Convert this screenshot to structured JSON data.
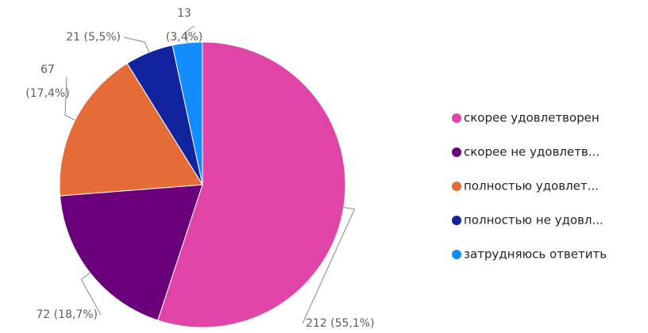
{
  "chart_data": {
    "type": "pie",
    "categories": [
      "скорее удовлетворен",
      "скорее не удовлетв...",
      "полностью удовлет...",
      "полностью не удовл...",
      "затрудняюсь ответить"
    ],
    "values": [
      212,
      72,
      67,
      21,
      13
    ],
    "value_labels": [
      "212 (55,1%)",
      "72 (18,7%)",
      "67 (17,4%)",
      "21 (5,5%)",
      "13 (3,4%)"
    ],
    "colors": [
      "#e044a7",
      "#6b007b",
      "#e66c37",
      "#12239e",
      "#118dff"
    ],
    "legend": "right"
  }
}
